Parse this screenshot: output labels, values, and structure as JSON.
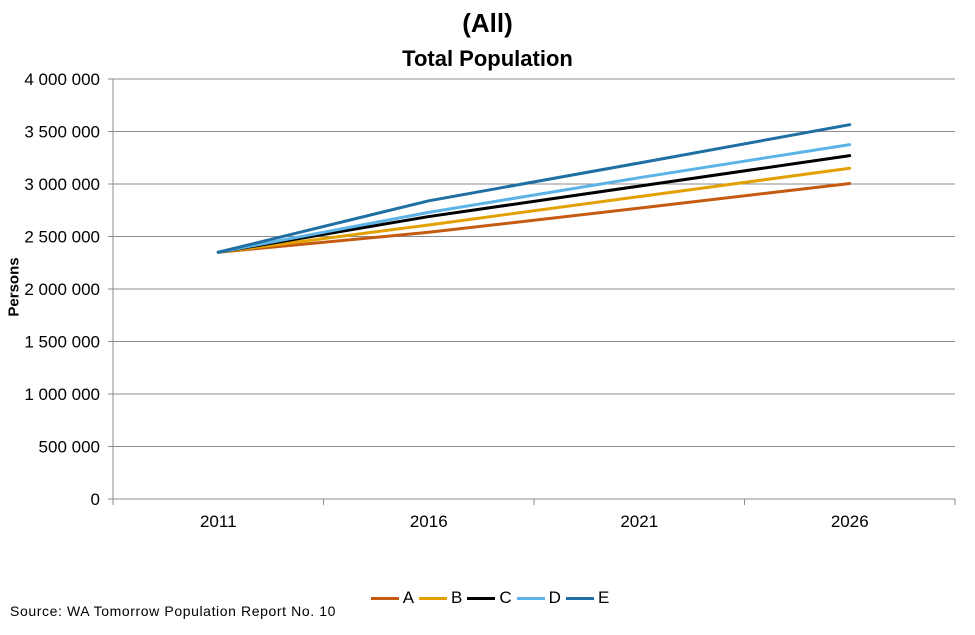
{
  "chart_data": {
    "type": "line",
    "title": "(All)",
    "subtitle": "Total Population",
    "ylabel": "Persons",
    "xlabel": "",
    "categories": [
      "2011",
      "2016",
      "2021",
      "2026"
    ],
    "ylim": [
      0,
      4000000
    ],
    "yticks": [
      0,
      500000,
      1000000,
      1500000,
      2000000,
      2500000,
      3000000,
      3500000,
      4000000
    ],
    "ytick_labels": [
      "0",
      "500 000",
      "1 000 000",
      "1 500 000",
      "2 000 000",
      "2 500 000",
      "3 000 000",
      "3 500 000",
      "4 000 000"
    ],
    "grid": true,
    "legend_position": "bottom",
    "series": [
      {
        "name": "A",
        "color": "#c55a11",
        "values": [
          2350000,
          2540000,
          2770000,
          3005000
        ]
      },
      {
        "name": "B",
        "color": "#e2a100",
        "values": [
          2350000,
          2610000,
          2880000,
          3150000
        ]
      },
      {
        "name": "C",
        "color": "#000000",
        "values": [
          2350000,
          2690000,
          2980000,
          3270000
        ]
      },
      {
        "name": "D",
        "color": "#5bb4e5",
        "values": [
          2350000,
          2730000,
          3060000,
          3375000
        ]
      },
      {
        "name": "E",
        "color": "#1f6fa3",
        "values": [
          2350000,
          2840000,
          3200000,
          3565000
        ]
      }
    ]
  },
  "source": "Source: WA Tomorrow Population Report No. 10"
}
